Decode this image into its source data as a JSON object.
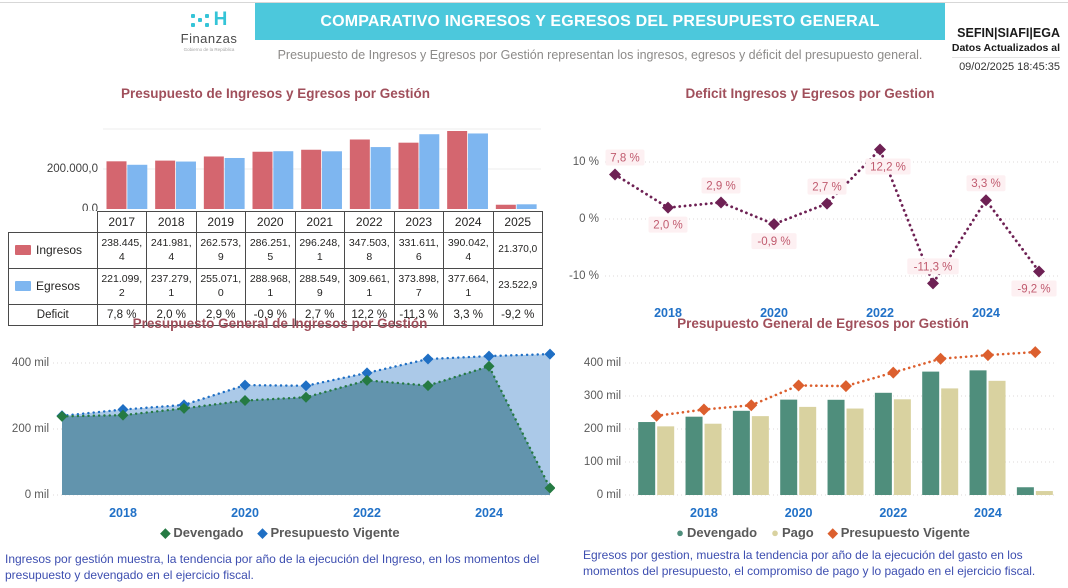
{
  "header": {
    "logo": {
      "brand": "Finanzas",
      "mark": "H",
      "tagline": "Gobierno de la República"
    },
    "banner_title": "COMPARATIVO INGRESOS Y EGRESOS DEL PRESUPUESTO GENERAL",
    "org": "SEFIN|SIAFI|EGA",
    "updated_label": "Datos Actualizados al",
    "updated_datetime": "09/02/2025 18:45:35",
    "subtitle": "Presupuesto de Ingresos y Egresos por Gestión representan los ingresos, egresos y déficit del presupuesto general."
  },
  "colors": {
    "banner": "#4cc8dc",
    "chart_title": "#a04f5b",
    "ingresos_bar": "#d4666f",
    "egresos_bar": "#7eb6f0",
    "deficit_line": "#6e2154",
    "deficit_label": "#c05a6e",
    "deficit_label_bg": "#fdf0f2",
    "devengado_green": "#257a43",
    "vigente_blue": "#1f6fc4",
    "devengado_area": "#6294ad",
    "vigente_area": "#abc9e8",
    "egresos_devengado": "#4f8e7c",
    "pago": "#d9d2a0",
    "vigente_orange": "#dc5f2e",
    "year_tick": "#2171c7",
    "caption": "#3d4eb0"
  },
  "chart_data": [
    {
      "type": "bar",
      "title": "Presupuesto de Ingresos y Egresos por Gestión",
      "categories": [
        "2017",
        "2018",
        "2019",
        "2020",
        "2021",
        "2022",
        "2023",
        "2024",
        "2025"
      ],
      "series": [
        {
          "name": "Ingresos",
          "color": "#d4666f",
          "values": [
            238445.4,
            241981.4,
            262573.9,
            286251.5,
            296248.1,
            347503.8,
            331611.6,
            390042.4,
            21370.0
          ],
          "display": [
            "238.445,4",
            "241.981,4",
            "262.573,9",
            "286.251,5",
            "296.248,1",
            "347.503,8",
            "331.611,6",
            "390.042,4",
            "21.370,0"
          ]
        },
        {
          "name": "Egresos",
          "color": "#7eb6f0",
          "values": [
            221099.2,
            237279.1,
            255071.0,
            288968.1,
            288549.9,
            309661.1,
            373898.7,
            377664.1,
            23522.9
          ],
          "display": [
            "221.099,2",
            "237.279,1",
            "255.071,0",
            "288.968,1",
            "288.549,9",
            "309.661,1",
            "373.898,7",
            "377.664,1",
            "23.522,9"
          ]
        }
      ],
      "deficit_row": {
        "label": "Deficit",
        "display": [
          "7,8 %",
          "2,0 %",
          "2,9 %",
          "-0,9 %",
          "2,7 %",
          "12,2 %",
          "-11,3 %",
          "3,3 %",
          "-9,2 %"
        ]
      },
      "yticks": [
        {
          "v": 200000,
          "label": "200.000,0"
        },
        {
          "v": 0,
          "label": "0,0"
        }
      ],
      "gridlines": [
        200000,
        400000
      ],
      "ylim": [
        0,
        540000
      ]
    },
    {
      "type": "line",
      "title": "Deficit Ingresos y Egresos por Gestion",
      "x": [
        2017,
        2018,
        2019,
        2020,
        2021,
        2022,
        2023,
        2024,
        2025
      ],
      "values": [
        7.8,
        2.0,
        2.9,
        -0.9,
        2.7,
        12.2,
        -11.3,
        3.3,
        -9.2
      ],
      "labels": [
        "7,8 %",
        "2,0 %",
        "2,9 %",
        "-0,9 %",
        "2,7 %",
        "12,2 %",
        "-11,3 %",
        "3,3 %",
        "-9,2 %"
      ],
      "label_side": [
        "above",
        "below",
        "above",
        "below",
        "above",
        "below",
        "above",
        "above",
        "below"
      ],
      "yticks": [
        {
          "v": 10,
          "label": "10 %"
        },
        {
          "v": 0,
          "label": "0 %"
        },
        {
          "v": -10,
          "label": "-10 %"
        }
      ],
      "xticks": [
        2018,
        2020,
        2022,
        2024
      ],
      "ylim": [
        -14,
        16
      ]
    },
    {
      "type": "area",
      "title": "Presupuesto General de Ingresos por Gestión",
      "x": [
        2017,
        2018,
        2019,
        2020,
        2021,
        2022,
        2023,
        2024,
        2025
      ],
      "series": [
        {
          "name": "Presupuesto Vigente",
          "values": [
            240,
            259,
            273,
            333,
            331,
            370,
            412,
            421,
            427
          ]
        },
        {
          "name": "Devengado",
          "values": [
            238.4,
            242.0,
            262.6,
            286.3,
            296.2,
            347.5,
            331.6,
            390.0,
            21.4
          ]
        }
      ],
      "yticks": [
        {
          "v": 400,
          "label": "400 mil"
        },
        {
          "v": 200,
          "label": "200 mil"
        },
        {
          "v": 0,
          "label": "0 mil"
        }
      ],
      "xticks": [
        2018,
        2020,
        2022,
        2024
      ],
      "legend": [
        {
          "name": "Devengado",
          "marker": "◆",
          "color": "#257a43"
        },
        {
          "name": "Presupuesto Vigente",
          "marker": "◆",
          "color": "#1f6fc4"
        }
      ],
      "ylim": [
        0,
        450
      ],
      "units": "mil"
    },
    {
      "type": "bar-line",
      "title": "Presupuesto General de Egresos por Gestión",
      "x": [
        2017,
        2018,
        2019,
        2020,
        2021,
        2022,
        2023,
        2024,
        2025
      ],
      "series": [
        {
          "name": "Devengado",
          "kind": "bar",
          "values": [
            221.1,
            237.3,
            255.1,
            289.0,
            288.5,
            309.7,
            373.9,
            377.7,
            23.5
          ]
        },
        {
          "name": "Pago",
          "kind": "bar",
          "values": [
            208,
            216,
            239,
            267,
            262,
            290,
            323,
            346,
            12
          ]
        },
        {
          "name": "Presupuesto Vigente",
          "kind": "line",
          "values": [
            240,
            259,
            272,
            332,
            330,
            371,
            413,
            424,
            433
          ]
        }
      ],
      "yticks": [
        {
          "v": 400,
          "label": "400 mil"
        },
        {
          "v": 300,
          "label": "300 mil"
        },
        {
          "v": 200,
          "label": "200 mil"
        },
        {
          "v": 100,
          "label": "100 mil"
        },
        {
          "v": 0,
          "label": "0 mil"
        }
      ],
      "xticks": [
        2018,
        2020,
        2022,
        2024
      ],
      "legend": [
        {
          "name": "Devengado",
          "marker": "●",
          "color": "#4f8e7c"
        },
        {
          "name": "Pago",
          "marker": "●",
          "color": "#d9d2a0"
        },
        {
          "name": "Presupuesto Vigente",
          "marker": "◆",
          "color": "#dc5f2e"
        }
      ],
      "ylim": [
        0,
        450
      ],
      "units": "mil"
    }
  ],
  "captions": {
    "left": "Ingresos por gestión muestra, la tendencia por año de la ejecución del Ingreso, en los momentos del presupuesto y devengado en el ejercicio fiscal.",
    "right": "Egresos por gestion, muestra la tendencia por año de la ejecución del gasto en los momentos del presupuesto, el compromiso de pago y lo pagado en el ejercicio fiscal."
  }
}
